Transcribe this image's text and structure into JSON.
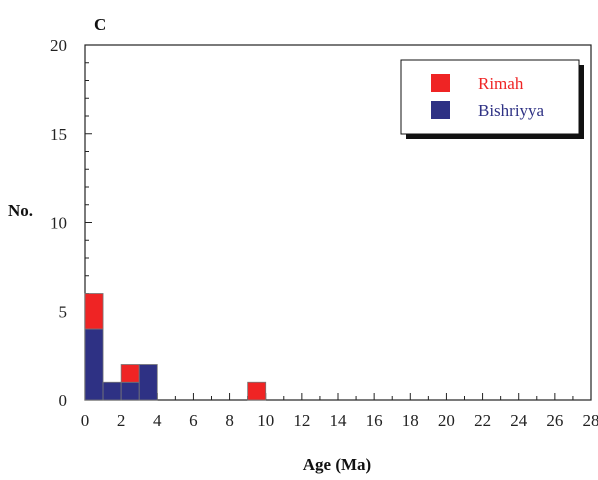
{
  "chart_data": {
    "type": "bar",
    "stacked": true,
    "panel_label": "C",
    "title": "",
    "xlabel": "Age (Ma)",
    "ylabel": "No.",
    "xlim": [
      0,
      28
    ],
    "ylim": [
      0,
      20
    ],
    "x_ticks": [
      0,
      2,
      4,
      6,
      8,
      10,
      12,
      14,
      16,
      18,
      20,
      22,
      24,
      26,
      28
    ],
    "y_ticks": [
      0,
      5,
      10,
      15,
      20
    ],
    "bin_width": 1,
    "bins": [
      0,
      1,
      2,
      3,
      9
    ],
    "series": [
      {
        "name": "Bishriyya",
        "color": "#2e3184",
        "values": [
          4,
          1,
          1,
          2,
          0
        ]
      },
      {
        "name": "Rimah",
        "color": "#ef2424",
        "values": [
          2,
          0,
          1,
          0,
          1
        ]
      }
    ],
    "legend_position": "top-right",
    "grid": false
  }
}
